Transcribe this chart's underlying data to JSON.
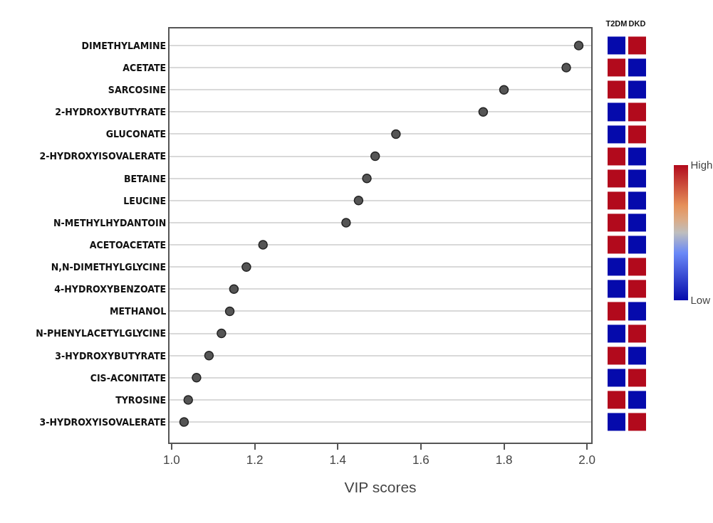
{
  "chart_data": [
    {
      "type": "scatter",
      "orientation": "horizontal",
      "xlabel": "VIP scores",
      "categories": [
        "DIMETHYLAMINE",
        "ACETATE",
        "SARCOSINE",
        "2-HYDROXYBUTYRATE",
        "GLUCONATE",
        "2-HYDROXYISOVALERATE",
        "BETAINE",
        "LEUCINE",
        "N-METHYLHYDANTOIN",
        "ACETOACETATE",
        "N,N-DIMETHYLGLYCINE",
        "4-HYDROXYBENZOATE",
        "METHANOL",
        "N-PHENYLACETYLGLYCINE",
        "3-HYDROXYBUTYRATE",
        "CIS-ACONITATE",
        "TYROSINE",
        "3-HYDROXYISOVALERATE"
      ],
      "values": [
        1.98,
        1.95,
        1.8,
        1.75,
        1.54,
        1.49,
        1.47,
        1.45,
        1.42,
        1.22,
        1.18,
        1.15,
        1.14,
        1.12,
        1.09,
        1.06,
        1.04,
        1.03
      ],
      "color": "#555555",
      "marker": "circle",
      "grid": "y",
      "xlim": [
        0.995,
        2.01
      ],
      "xticks": [
        {
          "value": 1.0,
          "label": "1.0"
        },
        {
          "value": 1.2,
          "label": "1.2"
        },
        {
          "value": 1.4,
          "label": "1.4"
        },
        {
          "value": 1.6,
          "label": "1.6"
        },
        {
          "value": 1.8,
          "label": "1.8"
        },
        {
          "value": 2.0,
          "label": "2.0"
        }
      ]
    },
    {
      "type": "heatmap",
      "categories": [
        "T2DM",
        "DKD"
      ],
      "tick_labels": "x",
      "y_categories": [
        null,
        null,
        null,
        null,
        null,
        null,
        null,
        null,
        null,
        null,
        null,
        null,
        null,
        null,
        null,
        null,
        null,
        null
      ],
      "cells": [
        [
          0,
          1
        ],
        [
          1,
          0
        ],
        [
          1,
          0
        ],
        [
          0,
          1
        ],
        [
          0,
          1
        ],
        [
          1,
          0
        ],
        [
          1,
          0
        ],
        [
          1,
          0
        ],
        [
          1,
          0
        ],
        [
          1,
          0
        ],
        [
          0,
          1
        ],
        [
          0,
          1
        ],
        [
          1,
          0
        ],
        [
          0,
          1
        ],
        [
          1,
          0
        ],
        [
          0,
          1
        ],
        [
          1,
          0
        ],
        [
          0,
          1
        ]
      ],
      "clim": [
        0,
        1
      ],
      "cticks": [
        {
          "value": 0,
          "label": "Low"
        },
        {
          "value": 1,
          "label": "High"
        }
      ]
    }
  ]
}
